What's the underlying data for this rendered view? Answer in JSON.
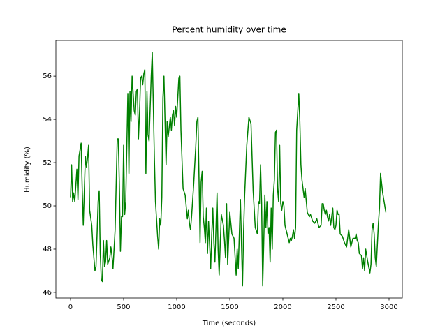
{
  "chart_data": {
    "type": "line",
    "title": "Percent humidity over time",
    "x_label": "Time (seconds)",
    "y_label": "Humidity (%)",
    "color": "#008000",
    "x": [
      0,
      10,
      20,
      30,
      40,
      60,
      70,
      80,
      100,
      110,
      120,
      140,
      150,
      160,
      170,
      180,
      200,
      210,
      230,
      240,
      260,
      270,
      280,
      290,
      300,
      310,
      320,
      330,
      340,
      350,
      370,
      380,
      390,
      400,
      420,
      440,
      450,
      460,
      470,
      480,
      490,
      500,
      510,
      520,
      540,
      550,
      560,
      570,
      580,
      600,
      610,
      620,
      630,
      640,
      650,
      660,
      670,
      680,
      690,
      700,
      710,
      720,
      730,
      740,
      760,
      770,
      790,
      800,
      820,
      830,
      840,
      850,
      860,
      870,
      880,
      900,
      910,
      920,
      940,
      950,
      960,
      970,
      980,
      990,
      1000,
      1020,
      1030,
      1040,
      1060,
      1080,
      1100,
      1110,
      1120,
      1130,
      1140,
      1160,
      1180,
      1190,
      1200,
      1210,
      1220,
      1230,
      1240,
      1250,
      1260,
      1270,
      1280,
      1290,
      1300,
      1310,
      1320,
      1330,
      1340,
      1350,
      1360,
      1370,
      1380,
      1390,
      1400,
      1420,
      1440,
      1450,
      1460,
      1470,
      1480,
      1500,
      1520,
      1540,
      1560,
      1570,
      1580,
      1600,
      1620,
      1630,
      1640,
      1660,
      1680,
      1700,
      1720,
      1740,
      1760,
      1770,
      1780,
      1790,
      1800,
      1810,
      1820,
      1830,
      1840,
      1850,
      1860,
      1870,
      1880,
      1890,
      1900,
      1910,
      1920,
      1930,
      1940,
      1950,
      1960,
      1970,
      1980,
      1990,
      2000,
      2010,
      2020,
      2040,
      2060,
      2070,
      2080,
      2090,
      2100,
      2110,
      2120,
      2130,
      2150,
      2160,
      2170,
      2180,
      2200,
      2210,
      2230,
      2250,
      2260,
      2280,
      2300,
      2320,
      2340,
      2360,
      2370,
      2380,
      2390,
      2400,
      2410,
      2420,
      2430,
      2440,
      2450,
      2470,
      2480,
      2490,
      2500,
      2510,
      2520,
      2530,
      2540,
      2560,
      2580,
      2600,
      2620,
      2640,
      2660,
      2680,
      2690,
      2700,
      2710,
      2720,
      2740,
      2750,
      2760,
      2770,
      2780,
      2800,
      2820,
      2830,
      2840,
      2850,
      2860,
      2870,
      2880,
      2900,
      2910,
      2920,
      2940,
      2970
    ],
    "values": [
      50.4,
      51.9,
      50.2,
      50.6,
      50.2,
      51.7,
      50.3,
      52.3,
      52.9,
      50.8,
      49.1,
      52.3,
      51.8,
      52.2,
      52.8,
      49.8,
      49.1,
      48.2,
      47.0,
      47.2,
      50.2,
      50.7,
      47.8,
      46.6,
      46.5,
      48.4,
      47.2,
      47.4,
      48.4,
      47.3,
      47.6,
      48.1,
      47.7,
      47.1,
      48.9,
      53.1,
      53.1,
      51.0,
      47.9,
      49.5,
      49.5,
      52.8,
      49.6,
      50.2,
      55.2,
      51.5,
      55.3,
      53.9,
      56.0,
      54.4,
      54.2,
      55.3,
      55.4,
      53.1,
      54.3,
      55.9,
      56.0,
      55.6,
      56.1,
      56.3,
      51.5,
      55.3,
      53.3,
      53.0,
      56.0,
      57.1,
      52.2,
      50.2,
      48.6,
      48.0,
      49.4,
      49.1,
      50.4,
      55.0,
      56.0,
      51.9,
      53.9,
      53.2,
      54.1,
      53.5,
      54.2,
      54.4,
      53.7,
      54.6,
      54.1,
      55.9,
      56.0,
      53.5,
      50.8,
      50.5,
      49.4,
      49.8,
      49.2,
      48.9,
      49.5,
      51.0,
      52.8,
      53.9,
      54.1,
      51.3,
      48.3,
      51.1,
      51.6,
      49.5,
      49.0,
      48.3,
      49.9,
      47.8,
      49.3,
      48.2,
      47.1,
      48.7,
      49.9,
      48.3,
      47.4,
      49.0,
      50.6,
      48.0,
      46.8,
      49.6,
      49.1,
      48.4,
      47.6,
      50.1,
      47.3,
      49.7,
      48.7,
      48.5,
      46.8,
      48.0,
      47.1,
      50.3,
      46.3,
      48.8,
      50.5,
      52.8,
      54.1,
      53.8,
      50.7,
      49.0,
      48.7,
      50.2,
      50.1,
      51.9,
      50.1,
      46.3,
      48.3,
      50.5,
      49.0,
      50.2,
      48.7,
      49.0,
      47.4,
      49.9,
      48.0,
      50.5,
      51.2,
      53.4,
      53.5,
      50.8,
      50.2,
      52.8,
      50.1,
      49.8,
      50.2,
      50.0,
      49.1,
      48.7,
      48.3,
      48.5,
      48.4,
      48.6,
      48.9,
      48.5,
      49.0,
      53.5,
      55.2,
      53.9,
      51.9,
      51.2,
      50.4,
      50.8,
      49.7,
      49.5,
      49.6,
      49.3,
      49.2,
      49.4,
      49.0,
      49.1,
      50.1,
      50.1,
      49.8,
      49.6,
      49.8,
      49.5,
      49.3,
      49.6,
      49.1,
      49.9,
      49.0,
      48.9,
      49.1,
      49.8,
      49.6,
      49.6,
      48.7,
      48.6,
      48.3,
      48.1,
      48.9,
      48.1,
      48.5,
      48.5,
      48.7,
      48.4,
      48.3,
      47.8,
      47.7,
      47.1,
      47.6,
      47.0,
      48.0,
      47.4,
      46.9,
      47.3,
      48.9,
      49.2,
      48.7,
      47.6,
      47.2,
      49.2,
      49.9,
      51.5,
      50.6,
      49.7
    ],
    "xlim": [
      -138,
      3125
    ],
    "ylim": [
      45.74,
      57.65
    ],
    "xticks": [
      0,
      500,
      1000,
      1500,
      2000,
      2500,
      3000
    ],
    "yticks": [
      46,
      48,
      50,
      52,
      54,
      56
    ]
  }
}
